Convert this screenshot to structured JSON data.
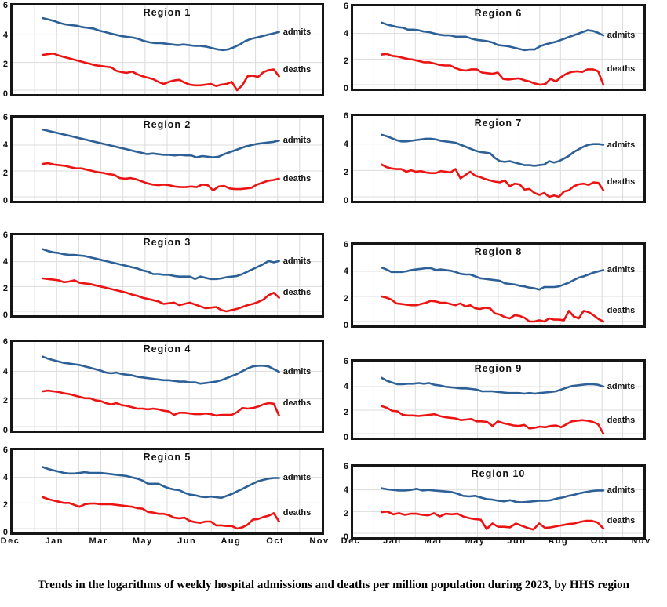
{
  "caption": "Trends in the logarithms of weekly hospital admissions and deaths per million population during 2023, by HHS region",
  "series_labels": {
    "admits": "admits",
    "deaths": "deaths"
  },
  "y_ticks": [
    "6",
    "4",
    "2",
    "0"
  ],
  "x_labels": [
    "Dec",
    "Jan",
    "Mar",
    "May",
    "Jun",
    "Aug",
    "Oct",
    "Nov"
  ],
  "colors": {
    "admits": "#2d6096",
    "deaths": "#ec1313",
    "grid": "#dcdcdc",
    "frame": "#161616",
    "text": "#111111"
  },
  "chart_data": [
    {
      "type": "line",
      "title": "Region 1",
      "ylim": [
        0,
        6
      ],
      "series": [
        {
          "name": "admits",
          "values": [
            5.2,
            5.1,
            5.0,
            4.85,
            4.75,
            4.7,
            4.65,
            4.55,
            4.5,
            4.45,
            4.3,
            4.2,
            4.1,
            4.0,
            3.9,
            3.85,
            3.8,
            3.7,
            3.55,
            3.45,
            3.4,
            3.4,
            3.35,
            3.3,
            3.25,
            3.3,
            3.25,
            3.2,
            3.2,
            3.15,
            3.05,
            2.95,
            2.9,
            2.95,
            3.1,
            3.3,
            3.55,
            3.7,
            3.8,
            3.9,
            4.0,
            4.1,
            4.2
          ]
        },
        {
          "name": "deaths",
          "values": [
            2.55,
            2.6,
            2.65,
            2.5,
            2.4,
            2.3,
            2.2,
            2.1,
            2.0,
            1.9,
            1.8,
            1.75,
            1.7,
            1.65,
            1.4,
            1.3,
            1.25,
            1.35,
            1.15,
            1.0,
            0.9,
            0.8,
            0.6,
            0.45,
            0.6,
            0.7,
            0.75,
            0.55,
            0.4,
            0.35,
            0.35,
            0.4,
            0.45,
            0.3,
            0.4,
            0.45,
            0.6,
            0.0,
            0.35,
            1.0,
            1.05,
            0.95,
            1.3,
            1.45,
            1.5,
            1.0
          ]
        }
      ]
    },
    {
      "type": "line",
      "title": "Region 2",
      "ylim": [
        0,
        6
      ],
      "series": [
        {
          "name": "admits",
          "values": [
            5.2,
            5.1,
            5.0,
            4.9,
            4.8,
            4.7,
            4.6,
            4.5,
            4.4,
            4.3,
            4.2,
            4.1,
            4.0,
            3.9,
            3.8,
            3.7,
            3.6,
            3.5,
            3.4,
            3.3,
            3.35,
            3.3,
            3.25,
            3.25,
            3.2,
            3.25,
            3.2,
            3.2,
            3.05,
            3.15,
            3.1,
            3.05,
            3.1,
            3.3,
            3.45,
            3.6,
            3.75,
            3.9,
            4.0,
            4.1,
            4.15,
            4.2,
            4.25,
            4.35
          ]
        },
        {
          "name": "deaths",
          "values": [
            2.55,
            2.6,
            2.5,
            2.45,
            2.4,
            2.3,
            2.2,
            2.2,
            2.1,
            2.0,
            1.9,
            1.85,
            1.75,
            1.7,
            1.45,
            1.4,
            1.45,
            1.35,
            1.2,
            1.05,
            0.95,
            0.9,
            0.95,
            0.9,
            0.8,
            0.75,
            0.75,
            0.8,
            0.75,
            0.95,
            0.9,
            0.5,
            0.8,
            0.85,
            0.65,
            0.6,
            0.6,
            0.65,
            0.7,
            0.95,
            1.1,
            1.25,
            1.3,
            1.4
          ]
        }
      ]
    },
    {
      "type": "line",
      "title": "Region 3",
      "ylim": [
        0,
        6
      ],
      "series": [
        {
          "name": "admits",
          "values": [
            5.0,
            4.85,
            4.75,
            4.7,
            4.6,
            4.55,
            4.55,
            4.5,
            4.45,
            4.35,
            4.25,
            4.15,
            4.05,
            3.95,
            3.85,
            3.75,
            3.65,
            3.55,
            3.45,
            3.3,
            3.2,
            3.0,
            3.0,
            2.95,
            2.95,
            2.85,
            2.8,
            2.8,
            2.8,
            2.6,
            2.8,
            2.7,
            2.6,
            2.6,
            2.65,
            2.75,
            2.8,
            2.85,
            3.0,
            3.2,
            3.4,
            3.6,
            3.8,
            4.05,
            3.95,
            4.05
          ]
        },
        {
          "name": "deaths",
          "values": [
            2.65,
            2.6,
            2.55,
            2.5,
            2.35,
            2.4,
            2.5,
            2.3,
            2.25,
            2.2,
            2.1,
            2.0,
            1.9,
            1.8,
            1.7,
            1.6,
            1.5,
            1.35,
            1.25,
            1.1,
            1.0,
            0.9,
            0.8,
            0.6,
            0.65,
            0.7,
            0.5,
            0.6,
            0.7,
            0.55,
            0.4,
            0.25,
            0.3,
            0.35,
            0.1,
            0.0,
            0.1,
            0.2,
            0.35,
            0.5,
            0.6,
            0.75,
            0.95,
            1.3,
            1.5,
            1.1
          ]
        }
      ]
    },
    {
      "type": "line",
      "title": "Region 4",
      "ylim": [
        0,
        6
      ],
      "series": [
        {
          "name": "admits",
          "values": [
            5.05,
            4.9,
            4.8,
            4.7,
            4.6,
            4.55,
            4.5,
            4.45,
            4.35,
            4.25,
            4.15,
            4.05,
            3.9,
            3.85,
            3.9,
            3.8,
            3.75,
            3.7,
            3.6,
            3.55,
            3.5,
            3.45,
            3.4,
            3.35,
            3.35,
            3.3,
            3.25,
            3.25,
            3.2,
            3.2,
            3.1,
            3.15,
            3.2,
            3.25,
            3.35,
            3.5,
            3.65,
            3.8,
            4.0,
            4.2,
            4.35,
            4.4,
            4.4,
            4.35,
            4.15,
            3.95
          ]
        },
        {
          "name": "deaths",
          "values": [
            2.55,
            2.6,
            2.55,
            2.5,
            2.4,
            2.35,
            2.25,
            2.15,
            2.05,
            2.05,
            1.9,
            1.85,
            1.7,
            1.6,
            1.7,
            1.55,
            1.5,
            1.4,
            1.3,
            1.3,
            1.25,
            1.3,
            1.25,
            1.15,
            1.1,
            0.85,
            1.0,
            1.0,
            0.95,
            0.9,
            0.9,
            0.95,
            0.9,
            0.8,
            0.85,
            0.85,
            0.85,
            1.05,
            1.35,
            1.3,
            1.35,
            1.45,
            1.6,
            1.7,
            1.65,
            0.8
          ]
        }
      ]
    },
    {
      "type": "line",
      "title": "Region 5",
      "ylim": [
        0,
        6
      ],
      "series": [
        {
          "name": "admits",
          "values": [
            4.8,
            4.65,
            4.55,
            4.45,
            4.35,
            4.3,
            4.3,
            4.35,
            4.4,
            4.35,
            4.35,
            4.35,
            4.3,
            4.25,
            4.2,
            4.15,
            4.1,
            4.0,
            3.9,
            3.75,
            3.5,
            3.5,
            3.5,
            3.3,
            3.15,
            3.05,
            3.0,
            2.8,
            2.65,
            2.6,
            2.5,
            2.45,
            2.5,
            2.45,
            2.4,
            2.55,
            2.7,
            2.9,
            3.1,
            3.3,
            3.5,
            3.7,
            3.8,
            3.9,
            3.95,
            3.95
          ]
        },
        {
          "name": "deaths",
          "values": [
            2.45,
            2.3,
            2.2,
            2.1,
            2.0,
            2.0,
            1.85,
            1.7,
            1.9,
            1.95,
            1.95,
            1.9,
            1.9,
            1.9,
            1.85,
            1.8,
            1.75,
            1.7,
            1.6,
            1.55,
            1.3,
            1.25,
            1.15,
            1.15,
            1.05,
            0.85,
            0.8,
            0.85,
            0.6,
            0.5,
            0.45,
            0.55,
            0.55,
            0.25,
            0.25,
            0.2,
            0.2,
            0.0,
            0.1,
            0.3,
            0.7,
            0.75,
            0.9,
            1.0,
            1.2,
            0.55
          ]
        }
      ]
    },
    {
      "type": "line",
      "title": "Region 6",
      "ylim": [
        0,
        6
      ],
      "series": [
        {
          "name": "admits",
          "values": [
            4.85,
            4.7,
            4.6,
            4.5,
            4.45,
            4.3,
            4.3,
            4.25,
            4.15,
            4.1,
            4.0,
            3.9,
            3.85,
            3.85,
            3.75,
            3.75,
            3.75,
            3.6,
            3.5,
            3.45,
            3.4,
            3.3,
            3.1,
            3.05,
            3.0,
            2.9,
            2.8,
            2.7,
            2.75,
            2.75,
            3.0,
            3.15,
            3.25,
            3.35,
            3.5,
            3.65,
            3.8,
            3.95,
            4.1,
            4.25,
            4.2,
            4.05,
            3.85
          ]
        },
        {
          "name": "deaths",
          "values": [
            2.35,
            2.4,
            2.25,
            2.2,
            2.1,
            2.0,
            1.95,
            1.85,
            1.75,
            1.75,
            1.65,
            1.55,
            1.5,
            1.5,
            1.3,
            1.15,
            1.1,
            1.2,
            1.2,
            0.95,
            0.9,
            0.85,
            0.95,
            0.45,
            0.4,
            0.45,
            0.5,
            0.35,
            0.25,
            0.1,
            0.0,
            0.05,
            0.45,
            0.25,
            0.6,
            0.85,
            1.0,
            1.05,
            1.0,
            1.2,
            1.2,
            1.05,
            0.0
          ]
        }
      ]
    },
    {
      "type": "line",
      "title": "Region 7",
      "ylim": [
        0,
        6
      ],
      "series": [
        {
          "name": "admits",
          "values": [
            4.7,
            4.6,
            4.45,
            4.3,
            4.2,
            4.2,
            4.25,
            4.3,
            4.35,
            4.4,
            4.4,
            4.35,
            4.25,
            4.2,
            4.15,
            4.1,
            3.95,
            3.8,
            3.65,
            3.5,
            3.4,
            3.35,
            3.3,
            2.95,
            2.7,
            2.65,
            2.7,
            2.6,
            2.5,
            2.4,
            2.4,
            2.35,
            2.4,
            2.45,
            2.7,
            2.6,
            2.7,
            2.9,
            3.1,
            3.4,
            3.6,
            3.8,
            3.95,
            4.0,
            4.0,
            3.95
          ]
        },
        {
          "name": "deaths",
          "values": [
            2.45,
            2.25,
            2.15,
            2.1,
            2.1,
            1.9,
            2.0,
            1.9,
            1.95,
            1.85,
            1.8,
            1.8,
            1.95,
            1.9,
            1.85,
            2.1,
            1.4,
            1.65,
            1.9,
            1.6,
            1.5,
            1.35,
            1.25,
            1.15,
            1.1,
            1.25,
            0.8,
            1.0,
            0.95,
            0.55,
            0.6,
            0.3,
            0.15,
            0.3,
            0.0,
            0.1,
            0.0,
            0.4,
            0.5,
            0.8,
            0.95,
            1.0,
            0.9,
            1.1,
            1.05,
            0.5
          ]
        }
      ]
    },
    {
      "type": "line",
      "title": "Region 8",
      "ylim": [
        0,
        6
      ],
      "series": [
        {
          "name": "admits",
          "values": [
            4.3,
            4.15,
            3.95,
            3.95,
            3.95,
            4.0,
            4.1,
            4.15,
            4.2,
            4.25,
            4.25,
            4.1,
            4.15,
            4.1,
            4.05,
            3.95,
            3.8,
            3.75,
            3.75,
            3.6,
            3.45,
            3.4,
            3.35,
            3.3,
            3.25,
            3.05,
            3.0,
            2.95,
            2.85,
            2.8,
            2.7,
            2.65,
            2.55,
            2.75,
            2.75,
            2.75,
            2.8,
            2.95,
            3.1,
            3.3,
            3.5,
            3.6,
            3.75,
            3.9,
            4.0,
            4.1
          ]
        },
        {
          "name": "deaths",
          "values": [
            2.0,
            1.9,
            1.75,
            1.45,
            1.4,
            1.35,
            1.3,
            1.3,
            1.4,
            1.5,
            1.65,
            1.6,
            1.5,
            1.5,
            1.4,
            1.3,
            1.45,
            1.2,
            1.3,
            1.05,
            1.0,
            1.1,
            1.05,
            0.65,
            0.55,
            0.35,
            0.25,
            0.5,
            0.45,
            0.3,
            0.0,
            0.0,
            0.1,
            0.0,
            0.25,
            0.15,
            0.15,
            0.1,
            0.85,
            0.4,
            0.25,
            0.85,
            0.75,
            0.5,
            0.2,
            0.0
          ]
        }
      ]
    },
    {
      "type": "line",
      "title": "Region 9",
      "ylim": [
        0,
        6
      ],
      "series": [
        {
          "name": "admits",
          "values": [
            4.75,
            4.5,
            4.35,
            4.2,
            4.2,
            4.25,
            4.25,
            4.3,
            4.25,
            4.3,
            4.15,
            4.1,
            4.0,
            3.95,
            3.9,
            3.85,
            3.85,
            3.8,
            3.75,
            3.6,
            3.6,
            3.6,
            3.55,
            3.5,
            3.45,
            3.45,
            3.45,
            3.4,
            3.45,
            3.4,
            3.45,
            3.5,
            3.55,
            3.6,
            3.75,
            3.9,
            4.05,
            4.1,
            4.15,
            4.2,
            4.2,
            4.15,
            4.0
          ]
        },
        {
          "name": "deaths",
          "values": [
            2.35,
            2.2,
            1.95,
            1.9,
            1.6,
            1.55,
            1.55,
            1.5,
            1.55,
            1.6,
            1.65,
            1.5,
            1.4,
            1.35,
            1.3,
            1.15,
            1.2,
            1.25,
            1.05,
            1.05,
            1.0,
            0.65,
            1.05,
            0.9,
            0.8,
            0.7,
            0.65,
            0.75,
            0.45,
            0.5,
            0.6,
            0.55,
            0.65,
            0.7,
            0.55,
            0.8,
            1.05,
            1.1,
            1.15,
            1.1,
            1.0,
            0.8,
            0.0
          ]
        }
      ]
    },
    {
      "type": "line",
      "title": "Region 10",
      "ylim": [
        0,
        6
      ],
      "series": [
        {
          "name": "admits",
          "values": [
            4.15,
            4.05,
            4.0,
            3.95,
            3.95,
            4.0,
            4.1,
            3.95,
            4.0,
            3.95,
            3.9,
            3.85,
            3.8,
            3.65,
            3.45,
            3.4,
            3.45,
            3.3,
            3.15,
            3.1,
            3.0,
            2.95,
            3.05,
            2.9,
            2.85,
            2.9,
            2.95,
            3.0,
            3.0,
            3.05,
            3.2,
            3.3,
            3.45,
            3.55,
            3.7,
            3.8,
            3.9,
            3.95,
            3.95
          ]
        },
        {
          "name": "deaths",
          "values": [
            1.95,
            2.0,
            1.75,
            1.85,
            1.7,
            1.8,
            1.8,
            1.7,
            1.65,
            1.85,
            1.55,
            1.8,
            1.75,
            1.8,
            1.55,
            1.4,
            1.3,
            1.25,
            0.4,
            0.9,
            0.6,
            0.6,
            0.55,
            0.9,
            0.7,
            0.5,
            0.35,
            0.9,
            0.5,
            0.55,
            0.65,
            0.75,
            0.85,
            0.9,
            1.05,
            1.15,
            1.15,
            1.0,
            0.45
          ]
        }
      ]
    }
  ]
}
